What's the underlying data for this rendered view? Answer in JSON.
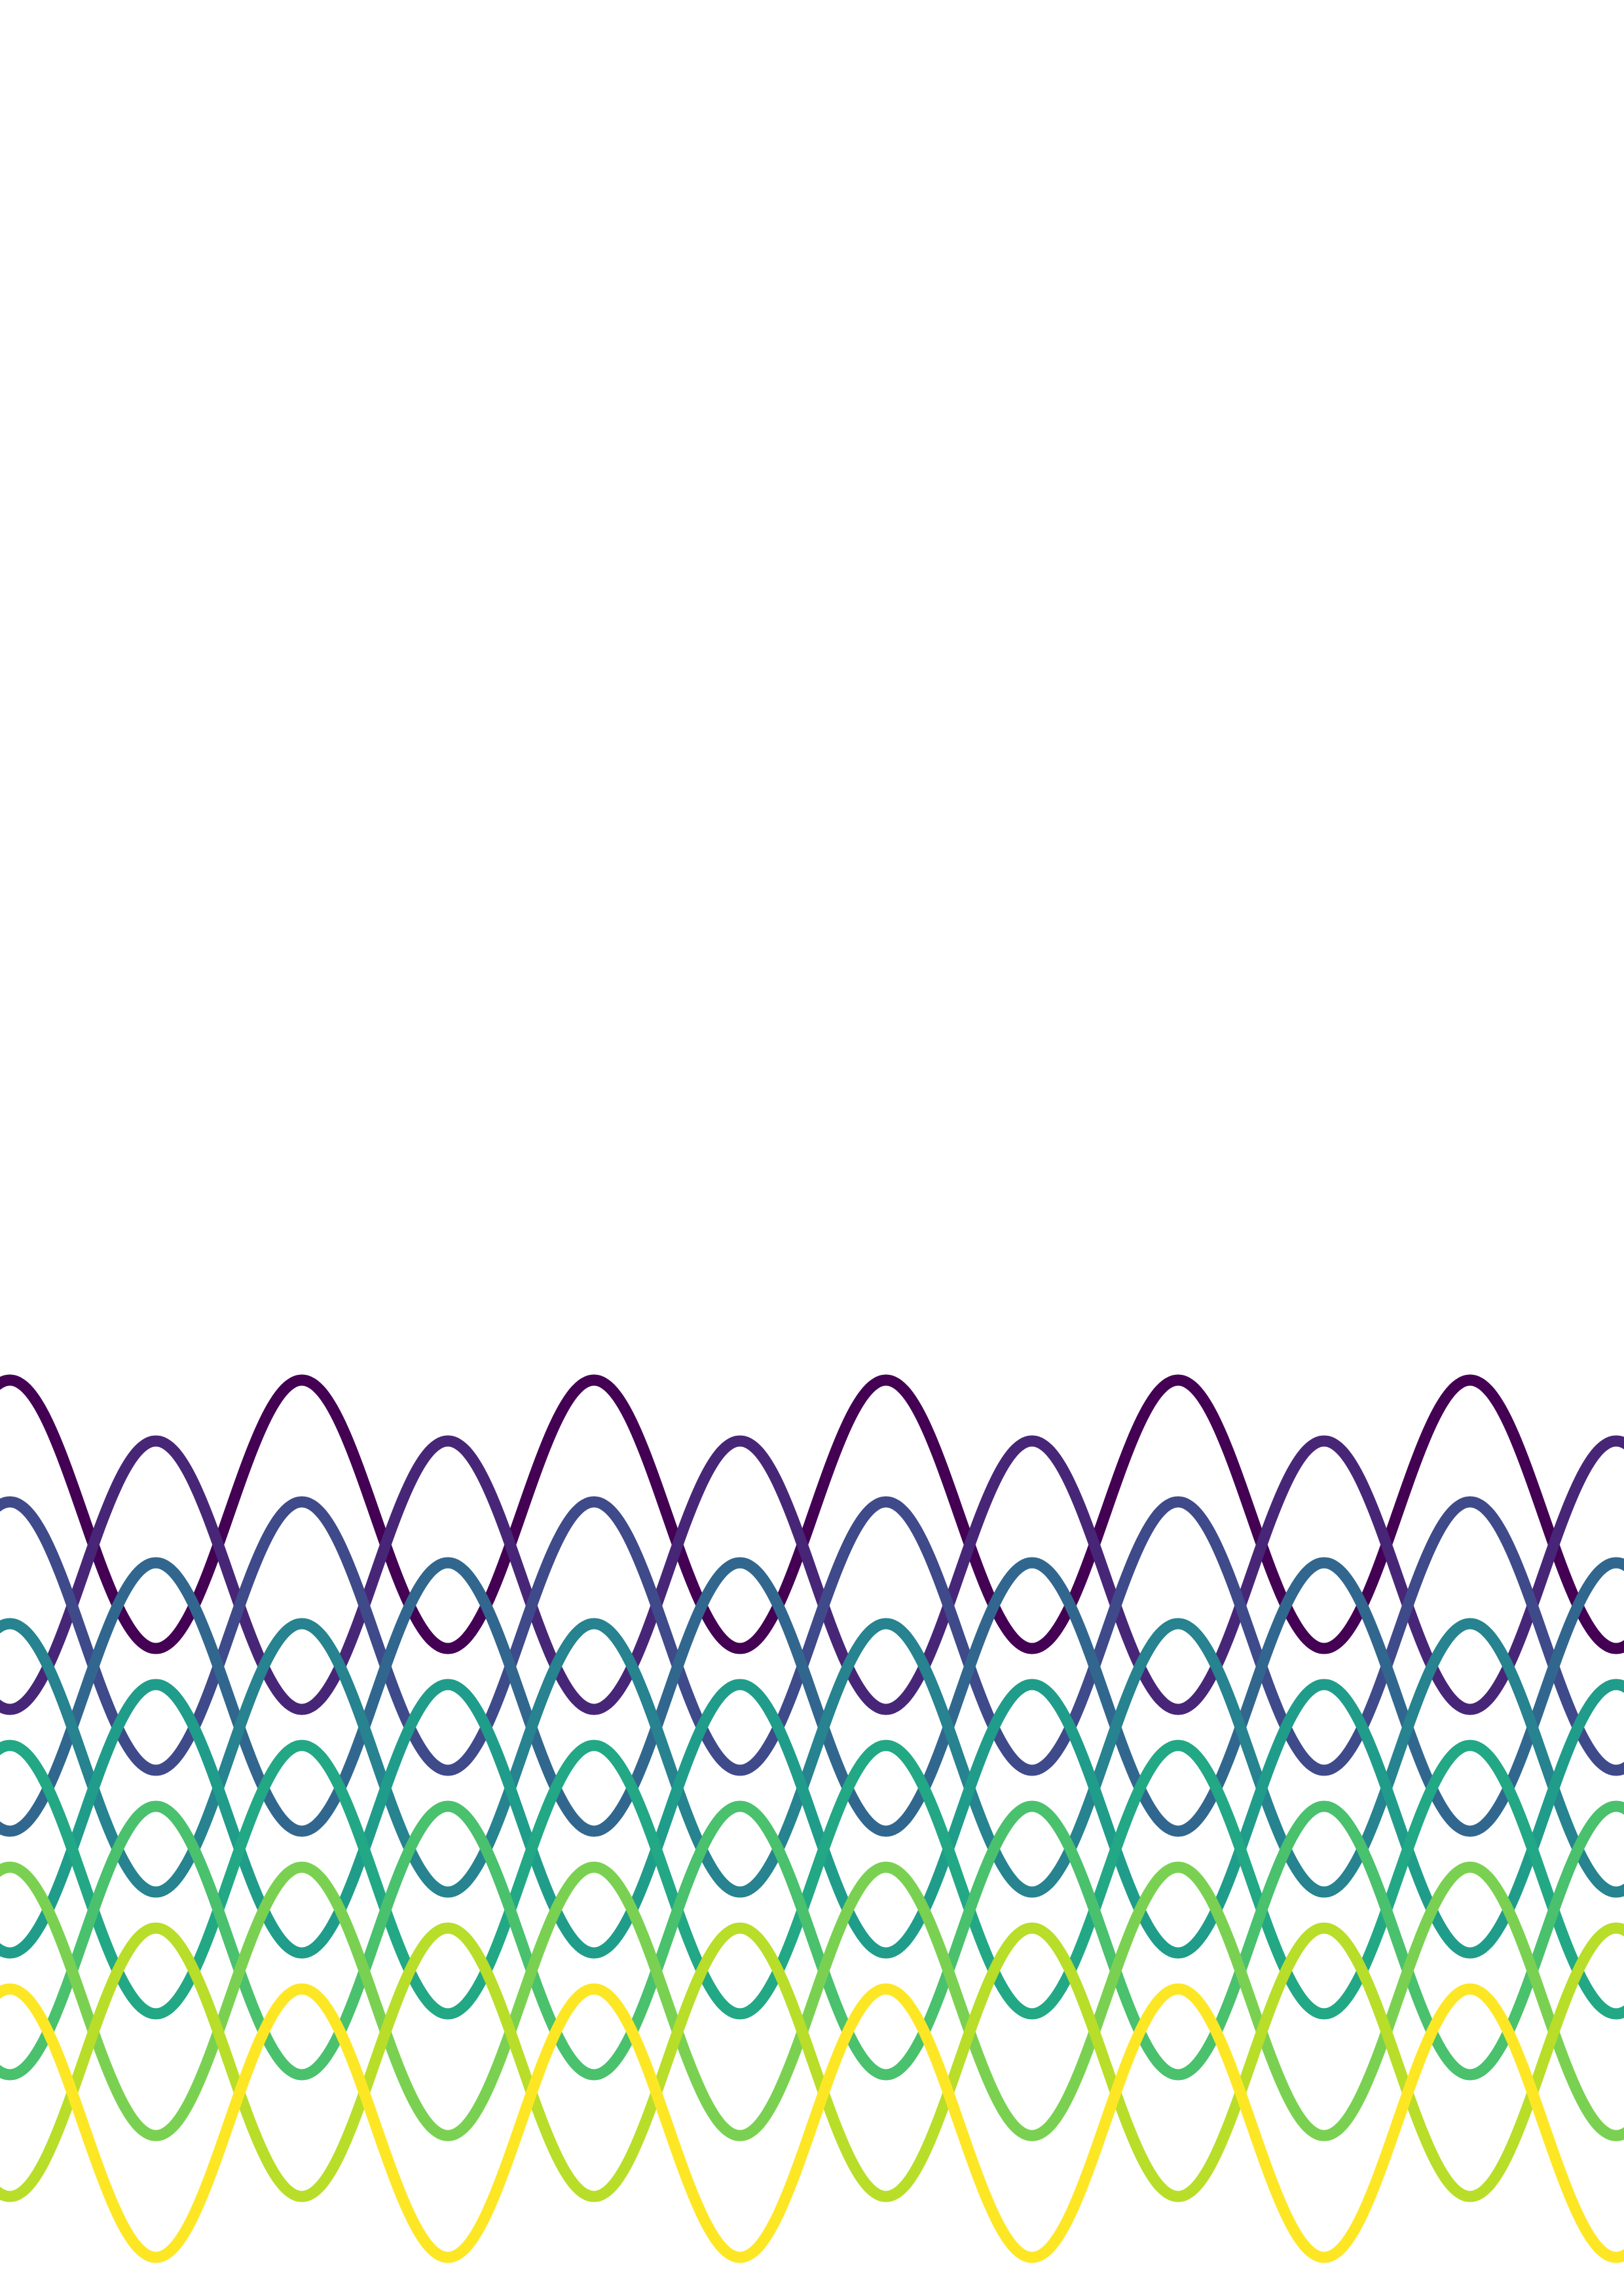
{
  "artwork": {
    "kind": "generative wave pattern",
    "background_color": "#ffffff",
    "palette": "viridis",
    "waves": [
      {
        "color": "#440154"
      },
      {
        "color": "#482677"
      },
      {
        "color": "#3f4a8a"
      },
      {
        "color": "#31678e"
      },
      {
        "color": "#26838f"
      },
      {
        "color": "#1f9d8a"
      },
      {
        "color": "#22a884"
      },
      {
        "color": "#4ac16d"
      },
      {
        "color": "#7ad151"
      },
      {
        "color": "#b8de29"
      },
      {
        "color": "#fde725"
      }
    ]
  }
}
